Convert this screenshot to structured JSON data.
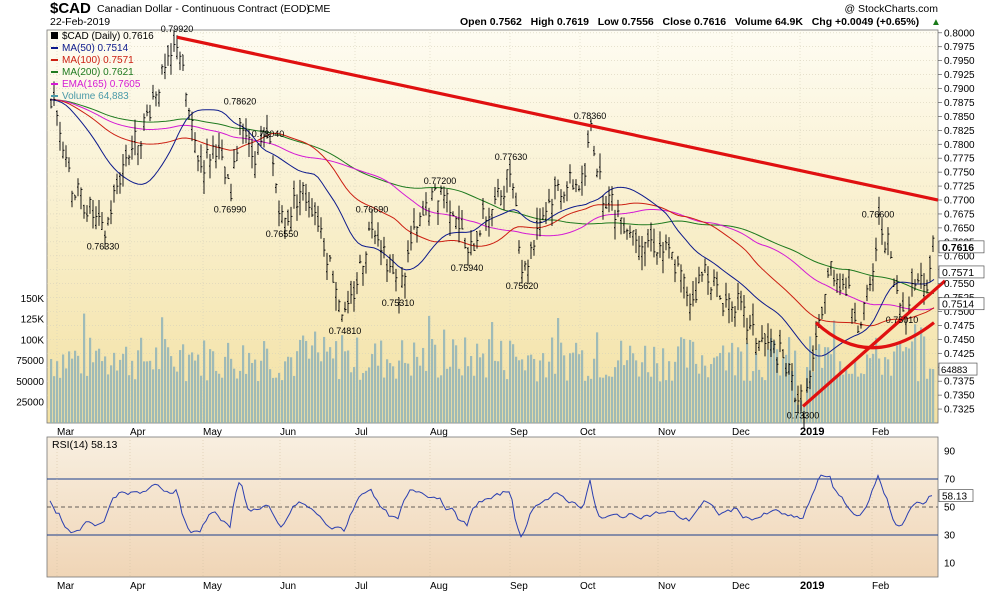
{
  "header": {
    "symbol": "$CAD",
    "name": "Canadian Dollar - Continuous Contract (EOD)",
    "exchange": "CME",
    "watermark": "@ StockCharts.com",
    "date": "22-Feb-2019",
    "ohlc_line": "Open 0.7562   High 0.7619   Low 0.7556   Close 0.7616   Volume 64.9K   Chg +0.0049 (+0.65%)",
    "arrow": "▲"
  },
  "legend": [
    {
      "text": "$CAD (Daily) 0.7616",
      "color": "#000000"
    },
    {
      "text": "MA(50) 0.7514",
      "color": "#0d1a8c"
    },
    {
      "text": "MA(100) 0.7571",
      "color": "#cc1f12"
    },
    {
      "text": "MA(200) 0.7621",
      "color": "#1f7a1f"
    },
    {
      "text": "EMA(165) 0.7605",
      "color": "#d41ad4"
    },
    {
      "text": "Volume 64,883",
      "color": "#4a9aa8"
    }
  ],
  "price_axis": {
    "min": 0.73,
    "max": 0.8005,
    "ticks": [
      "0.8000",
      "0.7975",
      "0.7950",
      "0.7925",
      "0.7900",
      "0.7875",
      "0.7850",
      "0.7825",
      "0.7800",
      "0.7775",
      "0.7750",
      "0.7725",
      "0.7700",
      "0.7675",
      "0.7650",
      "0.7625",
      "0.7600",
      "0.7575",
      "0.7550",
      "0.7525",
      "0.7500",
      "0.7475",
      "0.7450",
      "0.7425",
      "0.7400",
      "0.7375",
      "0.7350",
      "0.7325"
    ],
    "last_badges": [
      {
        "text": "0.7616",
        "value": 0.7616,
        "bold": true
      },
      {
        "text": "0.7571",
        "value": 0.7571
      },
      {
        "text": "0.7514",
        "value": 0.7514
      }
    ]
  },
  "volume_axis": {
    "max": 160000,
    "ticks": [
      "150K",
      "125K",
      "100K",
      "75000",
      "50000",
      "25000"
    ],
    "last_label": "64883"
  },
  "months": [
    "Mar",
    "Apr",
    "May",
    "Jun",
    "Jul",
    "Aug",
    "Sep",
    "Oct",
    "Nov",
    "Dec",
    "2019",
    "Feb"
  ],
  "annotations": [
    "0.79920",
    "0.78620",
    "0.78040",
    "0.76990",
    "0.76330",
    "0.76550",
    "0.76690",
    "0.75310",
    "0.74810",
    "0.77200",
    "0.75940",
    "0.77630",
    "0.75620",
    "0.78360",
    "0.73300",
    "0.76600",
    "0.75010"
  ],
  "rsi": {
    "label": "RSI(14) 58.13",
    "ticks": [
      "90",
      "70",
      "50",
      "30",
      "10"
    ],
    "last": "58.13"
  },
  "chart_data": {
    "type": "line",
    "title": "Canadian Dollar - Continuous Contract (EOD)",
    "x": [
      "2018-02-22",
      "2018-04-17",
      "2018-04-26",
      "2018-05-10",
      "2018-05-17",
      "2018-03-14",
      "2018-06-08",
      "2018-06-20",
      "2018-06-27",
      "2018-07-17",
      "2018-08-02",
      "2018-08-15",
      "2018-09-04",
      "2018-09-10",
      "2018-09-28",
      "2018-12-31",
      "2019-02-01",
      "2019-02-13",
      "2019-02-22"
    ],
    "series": [
      {
        "name": "$CAD (Daily)",
        "values": [
          0.78,
          0.7992,
          0.7862,
          0.7804,
          0.7699,
          0.7633,
          0.7655,
          0.7669,
          0.7481,
          0.7531,
          0.772,
          0.7594,
          0.7763,
          0.7562,
          0.7836,
          0.733,
          0.766,
          0.7501,
          0.7616
        ]
      }
    ],
    "ylim": [
      0.73,
      0.8005
    ],
    "last_values": {
      "close": 0.7616,
      "ma50": 0.7514,
      "ma100": 0.7571,
      "ma200": 0.7621,
      "ema165": 0.7605,
      "volume": 64883,
      "rsi14": 58.13
    }
  }
}
